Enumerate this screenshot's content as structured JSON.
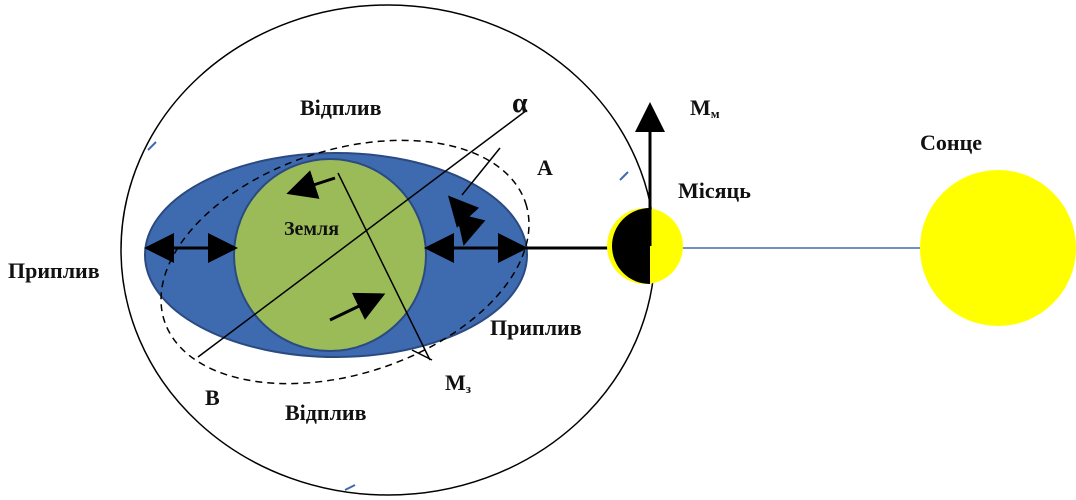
{
  "labels": {
    "ebb_top": "Відплив",
    "ebb_bottom": "Відплив",
    "flood_left": "Приплив",
    "flood_right": "Приплив",
    "alpha": "α",
    "point_a": "A",
    "point_b": "B",
    "earth": "Земля",
    "moon": "Місяць",
    "sun": "Сонце",
    "m_earth": {
      "main": "M",
      "sub": "з"
    },
    "m_moon": {
      "main": "M",
      "sub": "м"
    }
  }
}
